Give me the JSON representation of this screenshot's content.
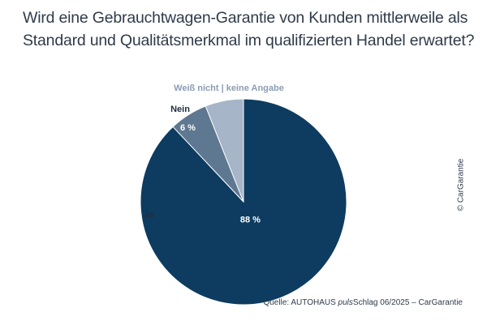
{
  "question": "Wird eine Gebrauchtwagen-Garantie von Kunden mittlerweile als Standard und Qualitätsmerkmal im qualifizierten Handel erwartet?",
  "copyright": "© CarGarantie",
  "source": {
    "prefix": "Quelle: AUTOHAUS ",
    "italic": "puls",
    "suffix": "Schlag 06/2025 – CarGarantie"
  },
  "chart_data": {
    "type": "pie",
    "title": "Wird eine Gebrauchtwagen-Garantie von Kunden mittlerweile als Standard und Qualitätsmerkmal im qualifizierten Handel erwartet?",
    "slices": [
      {
        "name": "Ja",
        "value": 88,
        "value_label": "88 %",
        "color": "#0d3c60"
      },
      {
        "name": "Nein",
        "value": 6,
        "value_label": "6 %",
        "color": "#5f7891"
      },
      {
        "name": "Weiß nicht | keine Angabe",
        "value": 6,
        "value_label": "",
        "color": "#a6b5c7"
      }
    ],
    "start": "12 o'clock",
    "direction": "clockwise"
  }
}
